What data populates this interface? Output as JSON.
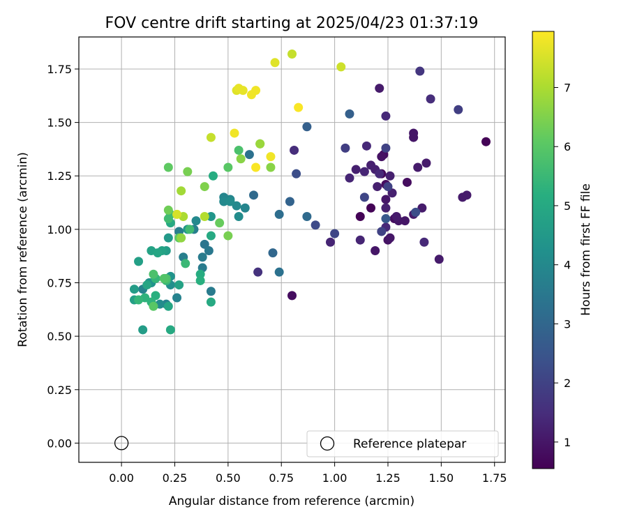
{
  "chart_data": {
    "type": "scatter",
    "title": "FOV centre drift starting at 2025/04/23 01:37:19",
    "xlabel": "Angular distance from reference (arcmin)",
    "ylabel": "Rotation from reference (arcmin)",
    "xlim": [
      -0.2,
      1.8
    ],
    "ylim": [
      -0.09,
      1.9
    ],
    "xticks": [
      "0.00",
      "0.25",
      "0.50",
      "0.75",
      "1.00",
      "1.25",
      "1.50",
      "1.75"
    ],
    "yticks": [
      "0.00",
      "0.25",
      "0.50",
      "0.75",
      "1.00",
      "1.25",
      "1.50",
      "1.75"
    ],
    "grid": true,
    "colormap": "viridis",
    "colorbar": {
      "label": "Hours from first FF file",
      "range": [
        0.55,
        7.95
      ],
      "ticks": [
        "1",
        "2",
        "3",
        "4",
        "5",
        "6",
        "7"
      ]
    },
    "reference_point": {
      "x": 0.0,
      "y": 0.0
    },
    "legend": {
      "label": "Reference platepar",
      "placement": "lower-right"
    },
    "points": [
      {
        "x": 1.71,
        "y": 1.41,
        "h": 0.6
      },
      {
        "x": 1.12,
        "y": 1.06,
        "h": 0.6
      },
      {
        "x": 1.17,
        "y": 1.1,
        "h": 0.6
      },
      {
        "x": 1.22,
        "y": 1.26,
        "h": 0.7
      },
      {
        "x": 1.24,
        "y": 1.21,
        "h": 0.8
      },
      {
        "x": 1.23,
        "y": 1.35,
        "h": 0.8
      },
      {
        "x": 1.28,
        "y": 1.05,
        "h": 0.8
      },
      {
        "x": 1.34,
        "y": 1.22,
        "h": 0.8
      },
      {
        "x": 0.8,
        "y": 0.69,
        "h": 0.8
      },
      {
        "x": 1.22,
        "y": 1.34,
        "h": 0.9
      },
      {
        "x": 1.25,
        "y": 0.95,
        "h": 0.9
      },
      {
        "x": 1.26,
        "y": 0.96,
        "h": 1.0
      },
      {
        "x": 1.3,
        "y": 1.04,
        "h": 1.0
      },
      {
        "x": 1.33,
        "y": 1.04,
        "h": 1.0
      },
      {
        "x": 1.37,
        "y": 1.43,
        "h": 1.0
      },
      {
        "x": 1.37,
        "y": 1.45,
        "h": 1.0
      },
      {
        "x": 1.19,
        "y": 0.9,
        "h": 1.0
      },
      {
        "x": 1.24,
        "y": 1.14,
        "h": 1.0
      },
      {
        "x": 1.43,
        "y": 1.31,
        "h": 1.1
      },
      {
        "x": 1.41,
        "y": 1.1,
        "h": 1.1
      },
      {
        "x": 1.49,
        "y": 0.86,
        "h": 1.1
      },
      {
        "x": 1.21,
        "y": 1.66,
        "h": 1.1
      },
      {
        "x": 1.39,
        "y": 1.29,
        "h": 1.1
      },
      {
        "x": 1.29,
        "y": 1.06,
        "h": 1.1
      },
      {
        "x": 1.6,
        "y": 1.15,
        "h": 1.1
      },
      {
        "x": 1.62,
        "y": 1.16,
        "h": 1.1
      },
      {
        "x": 1.37,
        "y": 1.07,
        "h": 1.1
      },
      {
        "x": 1.27,
        "y": 1.17,
        "h": 1.2
      },
      {
        "x": 1.24,
        "y": 1.1,
        "h": 1.2
      },
      {
        "x": 1.17,
        "y": 1.3,
        "h": 1.2
      },
      {
        "x": 1.19,
        "y": 1.28,
        "h": 1.2
      },
      {
        "x": 1.2,
        "y": 1.2,
        "h": 1.2
      },
      {
        "x": 1.26,
        "y": 1.25,
        "h": 1.2
      },
      {
        "x": 1.1,
        "y": 1.28,
        "h": 1.2
      },
      {
        "x": 1.12,
        "y": 0.95,
        "h": 1.3
      },
      {
        "x": 1.07,
        "y": 1.24,
        "h": 1.3
      },
      {
        "x": 0.98,
        "y": 0.94,
        "h": 1.3
      },
      {
        "x": 1.14,
        "y": 1.27,
        "h": 1.3
      },
      {
        "x": 1.24,
        "y": 1.01,
        "h": 1.4
      },
      {
        "x": 1.21,
        "y": 1.26,
        "h": 1.4
      },
      {
        "x": 1.15,
        "y": 1.39,
        "h": 1.4
      },
      {
        "x": 1.24,
        "y": 1.53,
        "h": 1.4
      },
      {
        "x": 1.42,
        "y": 0.94,
        "h": 1.4
      },
      {
        "x": 1.45,
        "y": 1.61,
        "h": 1.5
      },
      {
        "x": 0.81,
        "y": 1.37,
        "h": 1.5
      },
      {
        "x": 0.64,
        "y": 0.8,
        "h": 1.6
      },
      {
        "x": 1.4,
        "y": 1.74,
        "h": 1.7
      },
      {
        "x": 1.58,
        "y": 1.56,
        "h": 1.9
      },
      {
        "x": 1.05,
        "y": 1.38,
        "h": 1.9
      },
      {
        "x": 1.24,
        "y": 1.38,
        "h": 2.0
      },
      {
        "x": 1.25,
        "y": 1.2,
        "h": 2.0
      },
      {
        "x": 1.22,
        "y": 0.99,
        "h": 2.0
      },
      {
        "x": 1.0,
        "y": 0.98,
        "h": 2.1
      },
      {
        "x": 1.14,
        "y": 1.15,
        "h": 2.1
      },
      {
        "x": 0.91,
        "y": 1.02,
        "h": 2.2
      },
      {
        "x": 1.38,
        "y": 1.08,
        "h": 2.3
      },
      {
        "x": 0.82,
        "y": 1.26,
        "h": 2.3
      },
      {
        "x": 1.24,
        "y": 1.05,
        "h": 2.6
      },
      {
        "x": 1.07,
        "y": 1.54,
        "h": 2.8
      },
      {
        "x": 0.87,
        "y": 1.48,
        "h": 2.8
      },
      {
        "x": 0.79,
        "y": 1.13,
        "h": 2.9
      },
      {
        "x": 0.71,
        "y": 0.89,
        "h": 3.0
      },
      {
        "x": 0.87,
        "y": 1.06,
        "h": 3.1
      },
      {
        "x": 0.62,
        "y": 1.16,
        "h": 3.1
      },
      {
        "x": 0.74,
        "y": 1.07,
        "h": 3.2
      },
      {
        "x": 0.74,
        "y": 0.8,
        "h": 3.3
      },
      {
        "x": 0.6,
        "y": 1.35,
        "h": 3.3
      },
      {
        "x": 0.39,
        "y": 0.93,
        "h": 3.4
      },
      {
        "x": 0.41,
        "y": 0.9,
        "h": 3.5
      },
      {
        "x": 0.38,
        "y": 0.82,
        "h": 3.6
      },
      {
        "x": 0.42,
        "y": 0.71,
        "h": 3.6
      },
      {
        "x": 0.38,
        "y": 0.87,
        "h": 3.6
      },
      {
        "x": 0.34,
        "y": 1.0,
        "h": 3.7
      },
      {
        "x": 0.29,
        "y": 0.87,
        "h": 3.7
      },
      {
        "x": 0.27,
        "y": 0.99,
        "h": 3.7
      },
      {
        "x": 0.21,
        "y": 0.65,
        "h": 3.8
      },
      {
        "x": 0.26,
        "y": 0.68,
        "h": 3.8
      },
      {
        "x": 0.1,
        "y": 0.72,
        "h": 3.8
      },
      {
        "x": 0.58,
        "y": 1.1,
        "h": 3.9
      },
      {
        "x": 0.48,
        "y": 1.15,
        "h": 3.9
      },
      {
        "x": 0.51,
        "y": 1.14,
        "h": 3.9
      },
      {
        "x": 0.35,
        "y": 1.04,
        "h": 4.0
      },
      {
        "x": 0.48,
        "y": 1.13,
        "h": 4.0
      },
      {
        "x": 0.54,
        "y": 1.11,
        "h": 4.0
      },
      {
        "x": 0.51,
        "y": 1.13,
        "h": 4.1
      },
      {
        "x": 0.55,
        "y": 1.06,
        "h": 4.1
      },
      {
        "x": 0.18,
        "y": 0.65,
        "h": 4.1
      },
      {
        "x": 0.23,
        "y": 0.74,
        "h": 4.2
      },
      {
        "x": 0.13,
        "y": 0.75,
        "h": 4.2
      },
      {
        "x": 0.23,
        "y": 0.78,
        "h": 4.3
      },
      {
        "x": 0.14,
        "y": 0.75,
        "h": 4.3
      },
      {
        "x": 0.16,
        "y": 0.77,
        "h": 4.4
      },
      {
        "x": 0.42,
        "y": 1.06,
        "h": 4.4
      },
      {
        "x": 0.31,
        "y": 1.0,
        "h": 4.4
      },
      {
        "x": 0.22,
        "y": 0.96,
        "h": 4.5
      },
      {
        "x": 0.21,
        "y": 0.9,
        "h": 4.6
      },
      {
        "x": 0.1,
        "y": 0.53,
        "h": 4.6
      },
      {
        "x": 0.06,
        "y": 0.72,
        "h": 4.6
      },
      {
        "x": 0.08,
        "y": 0.85,
        "h": 4.7
      },
      {
        "x": 0.06,
        "y": 0.67,
        "h": 4.7
      },
      {
        "x": 0.27,
        "y": 0.74,
        "h": 4.8
      },
      {
        "x": 0.14,
        "y": 0.9,
        "h": 4.8
      },
      {
        "x": 0.19,
        "y": 0.9,
        "h": 4.8
      },
      {
        "x": 0.12,
        "y": 0.74,
        "h": 4.9
      },
      {
        "x": 0.17,
        "y": 0.89,
        "h": 4.9
      },
      {
        "x": 0.22,
        "y": 0.64,
        "h": 4.9
      },
      {
        "x": 0.23,
        "y": 1.03,
        "h": 5.0
      },
      {
        "x": 0.42,
        "y": 0.97,
        "h": 5.0
      },
      {
        "x": 0.23,
        "y": 0.53,
        "h": 5.0
      },
      {
        "x": 0.42,
        "y": 0.66,
        "h": 5.0
      },
      {
        "x": 0.43,
        "y": 1.25,
        "h": 5.1
      },
      {
        "x": 0.37,
        "y": 0.79,
        "h": 5.1
      },
      {
        "x": 0.16,
        "y": 0.69,
        "h": 5.2
      },
      {
        "x": 0.37,
        "y": 0.76,
        "h": 5.2
      },
      {
        "x": 0.14,
        "y": 0.66,
        "h": 5.3
      },
      {
        "x": 0.11,
        "y": 0.68,
        "h": 5.3
      },
      {
        "x": 0.08,
        "y": 0.67,
        "h": 5.4
      },
      {
        "x": 0.16,
        "y": 0.77,
        "h": 5.4
      },
      {
        "x": 0.21,
        "y": 0.76,
        "h": 5.5
      },
      {
        "x": 0.3,
        "y": 0.84,
        "h": 5.5
      },
      {
        "x": 0.23,
        "y": 1.07,
        "h": 5.6
      },
      {
        "x": 0.22,
        "y": 1.05,
        "h": 5.6
      },
      {
        "x": 0.32,
        "y": 1.0,
        "h": 5.6
      },
      {
        "x": 0.55,
        "y": 1.37,
        "h": 5.8
      },
      {
        "x": 0.15,
        "y": 0.79,
        "h": 5.8
      },
      {
        "x": 0.21,
        "y": 0.77,
        "h": 5.8
      },
      {
        "x": 0.2,
        "y": 0.77,
        "h": 5.9
      },
      {
        "x": 0.5,
        "y": 1.29,
        "h": 6.0
      },
      {
        "x": 0.15,
        "y": 0.64,
        "h": 6.0
      },
      {
        "x": 0.22,
        "y": 1.29,
        "h": 6.1
      },
      {
        "x": 0.27,
        "y": 0.96,
        "h": 6.1
      },
      {
        "x": 0.46,
        "y": 1.03,
        "h": 6.2
      },
      {
        "x": 0.22,
        "y": 1.09,
        "h": 6.3
      },
      {
        "x": 0.31,
        "y": 1.27,
        "h": 6.4
      },
      {
        "x": 0.5,
        "y": 0.97,
        "h": 6.4
      },
      {
        "x": 0.65,
        "y": 1.4,
        "h": 6.5
      },
      {
        "x": 0.39,
        "y": 1.2,
        "h": 6.5
      },
      {
        "x": 0.56,
        "y": 1.33,
        "h": 6.6
      },
      {
        "x": 0.7,
        "y": 1.29,
        "h": 6.6
      },
      {
        "x": 0.28,
        "y": 0.96,
        "h": 6.7
      },
      {
        "x": 0.65,
        "y": 1.4,
        "h": 6.8
      },
      {
        "x": 0.28,
        "y": 1.18,
        "h": 6.9
      },
      {
        "x": 0.29,
        "y": 1.06,
        "h": 7.0
      },
      {
        "x": 0.39,
        "y": 1.06,
        "h": 7.1
      },
      {
        "x": 0.42,
        "y": 1.43,
        "h": 7.3
      },
      {
        "x": 0.8,
        "y": 1.82,
        "h": 7.3
      },
      {
        "x": 1.03,
        "y": 1.76,
        "h": 7.4
      },
      {
        "x": 0.26,
        "y": 1.07,
        "h": 7.5
      },
      {
        "x": 0.54,
        "y": 1.65,
        "h": 7.6
      },
      {
        "x": 0.72,
        "y": 1.78,
        "h": 7.6
      },
      {
        "x": 0.55,
        "y": 1.66,
        "h": 7.7
      },
      {
        "x": 0.57,
        "y": 1.65,
        "h": 7.7
      },
      {
        "x": 0.61,
        "y": 1.63,
        "h": 7.8
      },
      {
        "x": 0.63,
        "y": 1.65,
        "h": 7.8
      },
      {
        "x": 0.53,
        "y": 1.45,
        "h": 7.8
      },
      {
        "x": 0.7,
        "y": 1.34,
        "h": 7.8
      },
      {
        "x": 0.83,
        "y": 1.57,
        "h": 7.9
      },
      {
        "x": 0.63,
        "y": 1.29,
        "h": 7.9
      }
    ]
  }
}
